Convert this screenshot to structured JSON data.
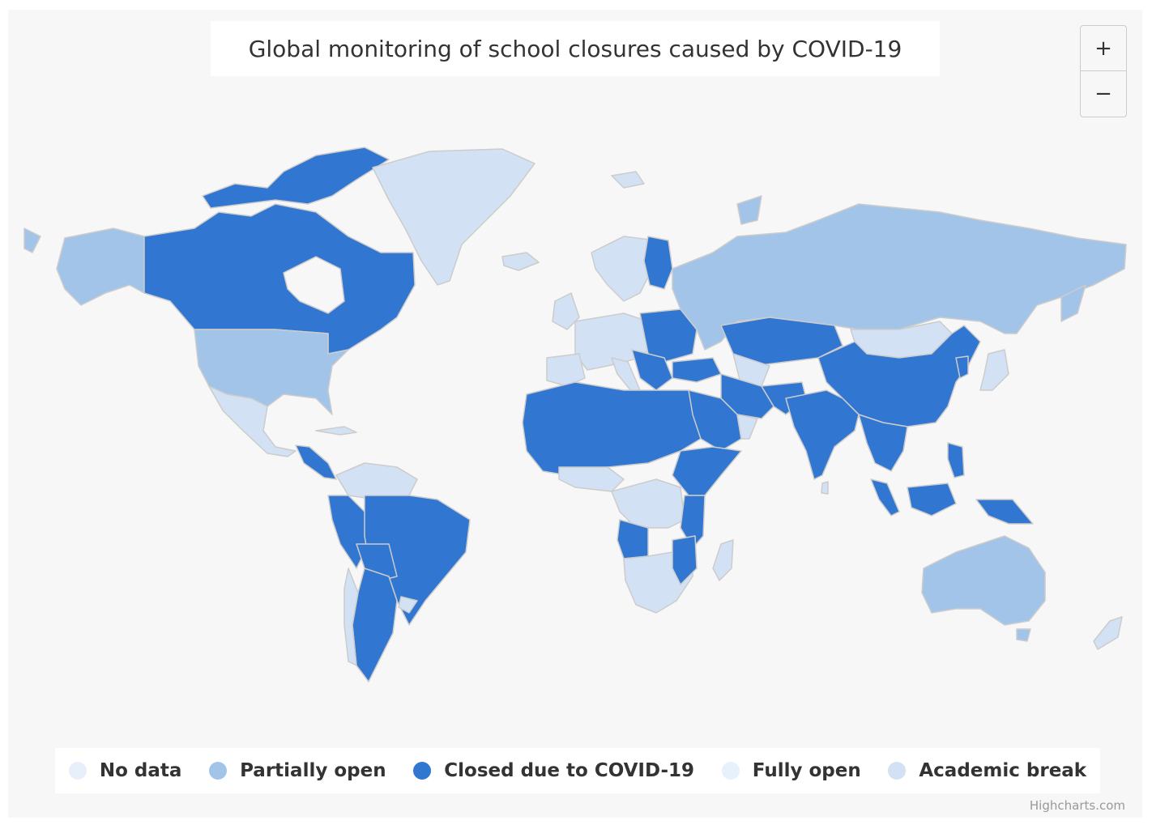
{
  "title": "Global monitoring of school closures caused by COVID-19",
  "zoom": {
    "in_label": "+",
    "out_label": "−"
  },
  "legend": [
    {
      "label": "No data",
      "color": "#e6effa"
    },
    {
      "label": "Partially open",
      "color": "#a3c4e9"
    },
    {
      "label": "Closed due to COVID-19",
      "color": "#3176d0"
    },
    {
      "label": "Fully open",
      "color": "#e6f1fb"
    },
    {
      "label": "Academic break",
      "color": "#d2e1f4"
    }
  ],
  "credits": "Highcharts.com",
  "map_colors": {
    "background": "#f7f7f7",
    "border": "#cccccc"
  }
}
